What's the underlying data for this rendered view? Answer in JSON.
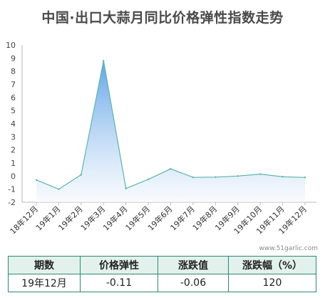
{
  "title": "中国·出口大蒜月同比价格弹性指数走势",
  "watermark": "www.51garlic.com",
  "chart_data": {
    "type": "area",
    "title": "中国·出口大蒜月同比价格弹性指数走势",
    "categories": [
      "18年12月",
      "19年1月",
      "19年2月",
      "19年3月",
      "19年4月",
      "19年5月",
      "19年6月",
      "19年7月",
      "19年8月",
      "19年9月",
      "19年10月",
      "19年11月",
      "19年12月"
    ],
    "values": [
      -0.3,
      -1.0,
      0.1,
      8.8,
      -0.95,
      -0.25,
      0.55,
      -0.1,
      -0.08,
      0.0,
      0.15,
      -0.05,
      -0.11
    ],
    "ylim": [
      -2,
      10
    ],
    "yticks": [
      -2,
      -1,
      0,
      1,
      2,
      3,
      4,
      5,
      6,
      7,
      8,
      9,
      10
    ],
    "grid": false,
    "line_color": "#5bb5ab",
    "fill_top_color": "#5b9fe6",
    "fill_bottom_color": "#f4f8fd"
  },
  "table": {
    "headers": [
      "期数",
      "价格弹性",
      "涨跌值",
      "涨跌幅（%）"
    ],
    "row": [
      "19年12月",
      "-0.11",
      "-0.06",
      "120"
    ]
  }
}
